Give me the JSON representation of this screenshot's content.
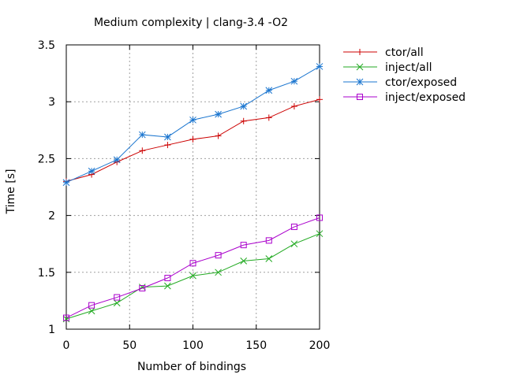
{
  "chart_data": {
    "type": "line",
    "title": "Medium complexity | clang-3.4 -O2",
    "xlabel": "Number of bindings",
    "ylabel": "Time [s]",
    "xlim": [
      0,
      200
    ],
    "ylim": [
      1,
      3.5
    ],
    "xticks": [
      0,
      50,
      100,
      150,
      200
    ],
    "xtick_labels": [
      "0",
      "50",
      "100",
      "150",
      "200"
    ],
    "yticks": [
      1,
      1.5,
      2,
      2.5,
      3,
      3.5
    ],
    "ytick_labels": [
      "1",
      "1.5",
      "2",
      "2.5",
      "3",
      "3.5"
    ],
    "grid": true,
    "legend_position": "outside-top-right",
    "x": [
      0,
      20,
      40,
      60,
      80,
      100,
      120,
      140,
      160,
      180,
      200
    ],
    "series": [
      {
        "name": "ctor/all",
        "marker": "plus",
        "color": "#cc0000",
        "values": [
          2.3,
          2.36,
          2.47,
          2.57,
          2.62,
          2.67,
          2.7,
          2.83,
          2.86,
          2.96,
          3.02
        ]
      },
      {
        "name": "inject/all",
        "marker": "cross",
        "color": "#22aa22",
        "values": [
          1.09,
          1.16,
          1.23,
          1.37,
          1.38,
          1.47,
          1.5,
          1.6,
          1.62,
          1.75,
          1.84
        ]
      },
      {
        "name": "ctor/exposed",
        "marker": "star",
        "color": "#1a75cf",
        "values": [
          2.29,
          2.39,
          2.49,
          2.71,
          2.69,
          2.84,
          2.89,
          2.96,
          3.1,
          3.18,
          3.31
        ]
      },
      {
        "name": "inject/exposed",
        "marker": "square",
        "color": "#aa00cc",
        "values": [
          1.1,
          1.21,
          1.28,
          1.36,
          1.45,
          1.58,
          1.65,
          1.74,
          1.78,
          1.9,
          1.98
        ]
      }
    ]
  }
}
